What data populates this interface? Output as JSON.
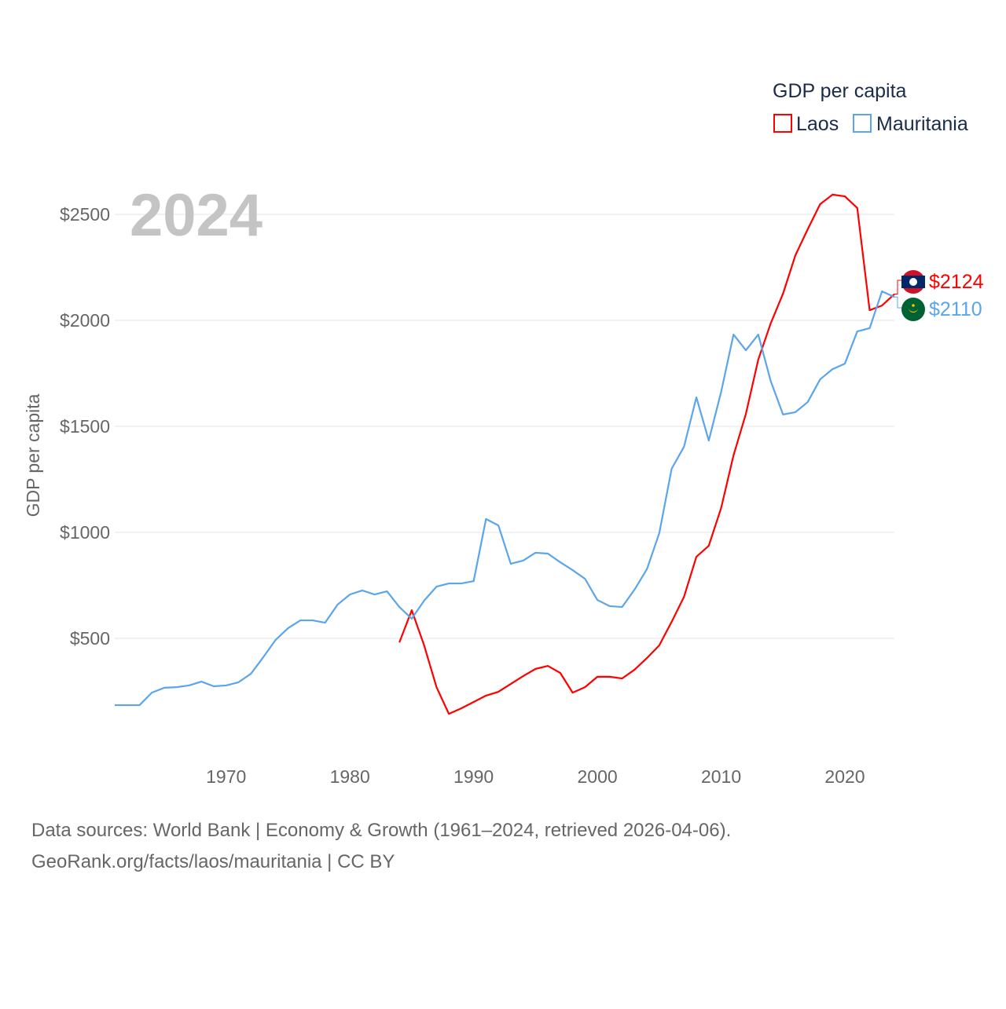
{
  "chart_data": {
    "type": "line",
    "title": "2024",
    "ylabel": "GDP per capita",
    "xlabel": "",
    "legend_title": "GDP per capita",
    "legend_position": "top-right",
    "grid": true,
    "xlim": [
      1961,
      2024
    ],
    "ylim": [
      0,
      2700
    ],
    "x_ticks": [
      1970,
      1980,
      1990,
      2000,
      2010,
      2020
    ],
    "y_ticks": [
      500,
      1000,
      1500,
      2000,
      2500
    ],
    "y_tick_labels": [
      "$500",
      "$1000",
      "$1500",
      "$2000",
      "$2500"
    ],
    "series": [
      {
        "name": "Laos",
        "color": "#ff0000",
        "end_label": "$2124",
        "flag": "laos-flag",
        "start_year": 1984,
        "values": [
          481,
          633,
          467,
          270,
          144,
          170,
          200,
          230,
          248,
          285,
          322,
          356,
          370,
          337,
          244,
          270,
          319,
          319,
          311,
          352,
          407,
          467,
          578,
          696,
          885,
          937,
          1115,
          1363,
          1559,
          1815,
          1985,
          2126,
          2307,
          2430,
          2548,
          2593,
          2585,
          2530,
          2048,
          2070,
          2124
        ]
      },
      {
        "name": "Mauritania",
        "color": "#5aa5ec",
        "end_label": "$2110",
        "flag": "mauritania-flag",
        "start_year": 1961,
        "values": [
          185,
          185,
          185,
          244,
          267,
          270,
          278,
          296,
          274,
          278,
          293,
          333,
          411,
          493,
          548,
          585,
          585,
          574,
          659,
          707,
          726,
          707,
          722,
          648,
          593,
          678,
          744,
          759,
          759,
          770,
          1063,
          1033,
          852,
          867,
          904,
          900,
          859,
          822,
          781,
          681,
          652,
          648,
          730,
          826,
          996,
          1300,
          1404,
          1637,
          1433,
          1663,
          1933,
          1859,
          1933,
          1715,
          1556,
          1567,
          1615,
          1722,
          1770,
          1796,
          1948,
          1963,
          2137,
          2110
        ]
      }
    ]
  },
  "footer": {
    "line1": "Data sources: World Bank | Economy & Growth (1961–2024, retrieved 2026-04-06).",
    "line2": "GeoRank.org/facts/laos/mauritania | CC BY"
  }
}
